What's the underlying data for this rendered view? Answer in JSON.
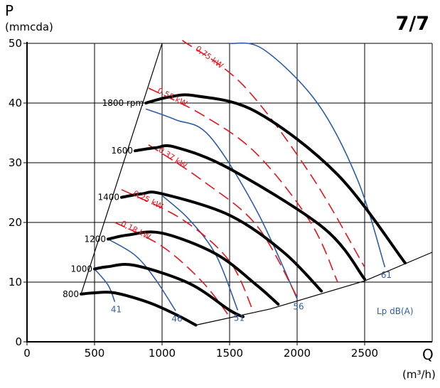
{
  "page_badge": "7/7",
  "chart_data": {
    "type": "line",
    "title": "",
    "ylabel": "P",
    "ylabel_unit": "(mmcda)",
    "xlabel": "Q",
    "xlabel_unit": "(m³/h)",
    "xlim": [
      0,
      3000
    ],
    "ylim": [
      0,
      50
    ],
    "x_ticks": [
      0,
      500,
      1000,
      1500,
      2000,
      2500
    ],
    "y_ticks": [
      0,
      10,
      20,
      30,
      40,
      50
    ],
    "grid": true,
    "colors": {
      "speed": "#000000",
      "noise": "#2f5ea8",
      "power": "#e8141e"
    },
    "boundary_left": {
      "x": [
        400,
        1000
      ],
      "y": [
        8,
        50
      ]
    },
    "boundary_right": {
      "x": [
        1250,
        1800,
        2500,
        3000
      ],
      "y": [
        2.8,
        5.5,
        10.2,
        15
      ]
    },
    "speed_curves": [
      {
        "label": "800",
        "x": [
          400,
          500,
          650,
          900,
          1100,
          1250
        ],
        "y": [
          8,
          8.2,
          8.2,
          6.6,
          4.6,
          2.8
        ]
      },
      {
        "label": "1000",
        "x": [
          500,
          600,
          800,
          1200,
          1500,
          1600
        ],
        "y": [
          12.2,
          12.6,
          12.8,
          9.8,
          5.3,
          4.2
        ]
      },
      {
        "label": "1200",
        "x": [
          600,
          750,
          1000,
          1400,
          1700,
          1860
        ],
        "y": [
          17.2,
          17.9,
          18.2,
          14.7,
          9.5,
          6.3
        ]
      },
      {
        "label": "1400",
        "x": [
          700,
          850,
          1000,
          1500,
          1900,
          2180
        ],
        "y": [
          24.2,
          24.8,
          24.8,
          21.2,
          15,
          8.5
        ]
      },
      {
        "label": "1600",
        "x": [
          800,
          950,
          1100,
          1500,
          2200,
          2500
        ],
        "y": [
          32,
          32.5,
          32.6,
          29,
          19,
          10.5
        ]
      },
      {
        "label": "1800 rpm",
        "x": [
          880,
          1050,
          1250,
          1700,
          2300,
          2800
        ],
        "y": [
          40,
          41,
          41.2,
          38.5,
          28,
          13.2
        ]
      }
    ],
    "noise_curves": [
      {
        "label": "41",
        "x": [
          500,
          600,
          650
        ],
        "y": [
          12.2,
          9.5,
          6.7
        ]
      },
      {
        "label": "46",
        "x": [
          600,
          800,
          950,
          1100
        ],
        "y": [
          17.2,
          14.5,
          10.5,
          5.2
        ]
      },
      {
        "label": "51",
        "x": [
          1000,
          1200,
          1400,
          1560
        ],
        "y": [
          24.5,
          20.5,
          14.5,
          5.3
        ]
      },
      {
        "label": "56",
        "x": [
          880,
          1100,
          1350,
          1700,
          2000
        ],
        "y": [
          39,
          37.2,
          34.5,
          22,
          7.2
        ]
      },
      {
        "label": "61",
        "x": [
          1500,
          1750,
          2150,
          2450,
          2650
        ],
        "y": [
          50,
          49,
          40,
          27,
          12.5
        ]
      }
    ],
    "power_curves": [
      {
        "label": "0,18 kW",
        "x": [
          650,
          1000,
          1300,
          1500
        ],
        "y": [
          20,
          16,
          10,
          4.2
        ]
      },
      {
        "label": "0,25 kW",
        "x": [
          700,
          1150,
          1500,
          1680
        ],
        "y": [
          25.5,
          20.5,
          13.5,
          4.8
        ]
      },
      {
        "label": "0,37 kW",
        "x": [
          900,
          1300,
          1700,
          2000
        ],
        "y": [
          33,
          27,
          19.5,
          7.5
        ]
      },
      {
        "label": "0,55 kW",
        "x": [
          900,
          1300,
          1700,
          2100,
          2300
        ],
        "y": [
          42.5,
          38,
          31.5,
          20,
          10
        ]
      },
      {
        "label": "0,75 kW",
        "x": [
          1150,
          1600,
          2100,
          2500
        ],
        "y": [
          50.5,
          43,
          28,
          12.5
        ]
      }
    ],
    "legend_label": "Lp dB(A)"
  }
}
